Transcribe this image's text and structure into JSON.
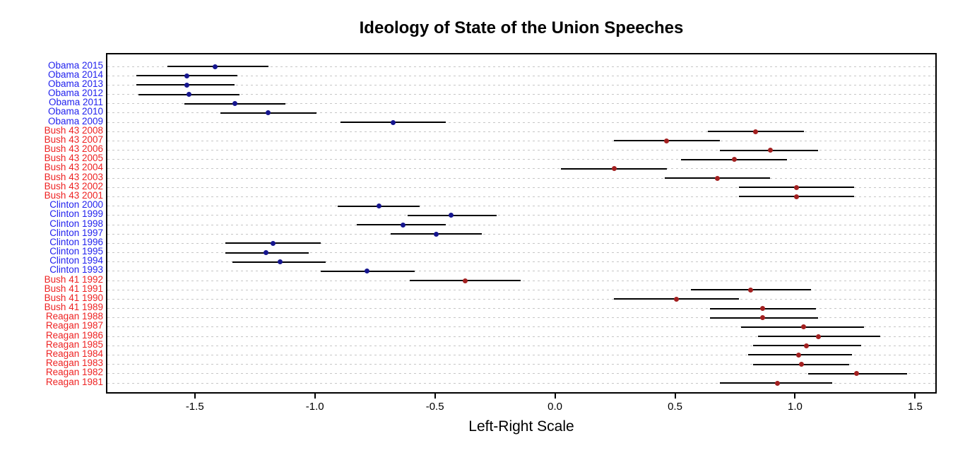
{
  "title": "Ideology of State of the Union Speeches",
  "chart_data": {
    "type": "scatter",
    "subtype": "horizontal-dot-plot-with-confidence-intervals",
    "title": "Ideology of State of the Union Speeches",
    "xlabel": "Left-Right Scale",
    "ylabel": "",
    "xlim": [
      -1.87,
      1.59
    ],
    "xticks": [
      -1.5,
      -1.0,
      -0.5,
      0.0,
      0.5,
      1.0,
      1.5
    ],
    "xtick_labels": [
      "-1.5",
      "-1.0",
      "-0.5",
      "0.0",
      "0.5",
      "1.0",
      "1.5"
    ],
    "grid": "horizontal dashed lines at every row",
    "legend": "none",
    "colors": {
      "dem_label": "#2222EE",
      "rep_label": "#EE2222",
      "dem_point": "#16168F",
      "rep_point": "#A32020",
      "ci_line": "#000000",
      "grid": "#C6C6C6",
      "axis": "#000000"
    },
    "rows": [
      {
        "label": "Obama 2015",
        "party": "D",
        "est": -1.42,
        "lo": -1.62,
        "hi": -1.2
      },
      {
        "label": "Obama 2014",
        "party": "D",
        "est": -1.54,
        "lo": -1.75,
        "hi": -1.33
      },
      {
        "label": "Obama 2013",
        "party": "D",
        "est": -1.54,
        "lo": -1.75,
        "hi": -1.34
      },
      {
        "label": "Obama 2012",
        "party": "D",
        "est": -1.53,
        "lo": -1.74,
        "hi": -1.32
      },
      {
        "label": "Obama 2011",
        "party": "D",
        "est": -1.34,
        "lo": -1.55,
        "hi": -1.13
      },
      {
        "label": "Obama 2010",
        "party": "D",
        "est": -1.2,
        "lo": -1.4,
        "hi": -1.0
      },
      {
        "label": "Obama 2009",
        "party": "D",
        "est": -0.68,
        "lo": -0.9,
        "hi": -0.46
      },
      {
        "label": "Bush 43 2008",
        "party": "R",
        "est": 0.83,
        "lo": 0.63,
        "hi": 1.03
      },
      {
        "label": "Bush 43 2007",
        "party": "R",
        "est": 0.46,
        "lo": 0.24,
        "hi": 0.68
      },
      {
        "label": "Bush 43 2006",
        "party": "R",
        "est": 0.89,
        "lo": 0.68,
        "hi": 1.09
      },
      {
        "label": "Bush 43 2005",
        "party": "R",
        "est": 0.74,
        "lo": 0.52,
        "hi": 0.96
      },
      {
        "label": "Bush 43 2004",
        "party": "R",
        "est": 0.24,
        "lo": 0.02,
        "hi": 0.46
      },
      {
        "label": "Bush 43 2003",
        "party": "R",
        "est": 0.67,
        "lo": 0.45,
        "hi": 0.89
      },
      {
        "label": "Bush 43 2002",
        "party": "R",
        "est": 1.0,
        "lo": 0.76,
        "hi": 1.24
      },
      {
        "label": "Bush 43 2001",
        "party": "R",
        "est": 1.0,
        "lo": 0.76,
        "hi": 1.24
      },
      {
        "label": "Clinton 2000",
        "party": "D",
        "est": -0.74,
        "lo": -0.91,
        "hi": -0.57
      },
      {
        "label": "Clinton 1999",
        "party": "D",
        "est": -0.44,
        "lo": -0.62,
        "hi": -0.25
      },
      {
        "label": "Clinton 1998",
        "party": "D",
        "est": -0.64,
        "lo": -0.83,
        "hi": -0.46
      },
      {
        "label": "Clinton 1997",
        "party": "D",
        "est": -0.5,
        "lo": -0.69,
        "hi": -0.31
      },
      {
        "label": "Clinton 1996",
        "party": "D",
        "est": -1.18,
        "lo": -1.38,
        "hi": -0.98
      },
      {
        "label": "Clinton 1995",
        "party": "D",
        "est": -1.21,
        "lo": -1.38,
        "hi": -1.03
      },
      {
        "label": "Clinton 1994",
        "party": "D",
        "est": -1.15,
        "lo": -1.35,
        "hi": -0.96
      },
      {
        "label": "Clinton 1993",
        "party": "D",
        "est": -0.79,
        "lo": -0.98,
        "hi": -0.59
      },
      {
        "label": "Bush 41 1992",
        "party": "R",
        "est": -0.38,
        "lo": -0.61,
        "hi": -0.15
      },
      {
        "label": "Bush 41 1991",
        "party": "R",
        "est": 0.81,
        "lo": 0.56,
        "hi": 1.06
      },
      {
        "label": "Bush 41 1990",
        "party": "R",
        "est": 0.5,
        "lo": 0.24,
        "hi": 0.76
      },
      {
        "label": "Bush 41 1989",
        "party": "R",
        "est": 0.86,
        "lo": 0.64,
        "hi": 1.08
      },
      {
        "label": "Reagan 1988",
        "party": "R",
        "est": 0.86,
        "lo": 0.64,
        "hi": 1.09
      },
      {
        "label": "Reagan 1987",
        "party": "R",
        "est": 1.03,
        "lo": 0.77,
        "hi": 1.28
      },
      {
        "label": "Reagan 1986",
        "party": "R",
        "est": 1.09,
        "lo": 0.84,
        "hi": 1.35
      },
      {
        "label": "Reagan 1985",
        "party": "R",
        "est": 1.04,
        "lo": 0.82,
        "hi": 1.27
      },
      {
        "label": "Reagan 1984",
        "party": "R",
        "est": 1.01,
        "lo": 0.8,
        "hi": 1.23
      },
      {
        "label": "Reagan 1983",
        "party": "R",
        "est": 1.02,
        "lo": 0.82,
        "hi": 1.22
      },
      {
        "label": "Reagan 1982",
        "party": "R",
        "est": 1.25,
        "lo": 1.05,
        "hi": 1.46
      },
      {
        "label": "Reagan 1981",
        "party": "R",
        "est": 0.92,
        "lo": 0.68,
        "hi": 1.15
      }
    ]
  }
}
